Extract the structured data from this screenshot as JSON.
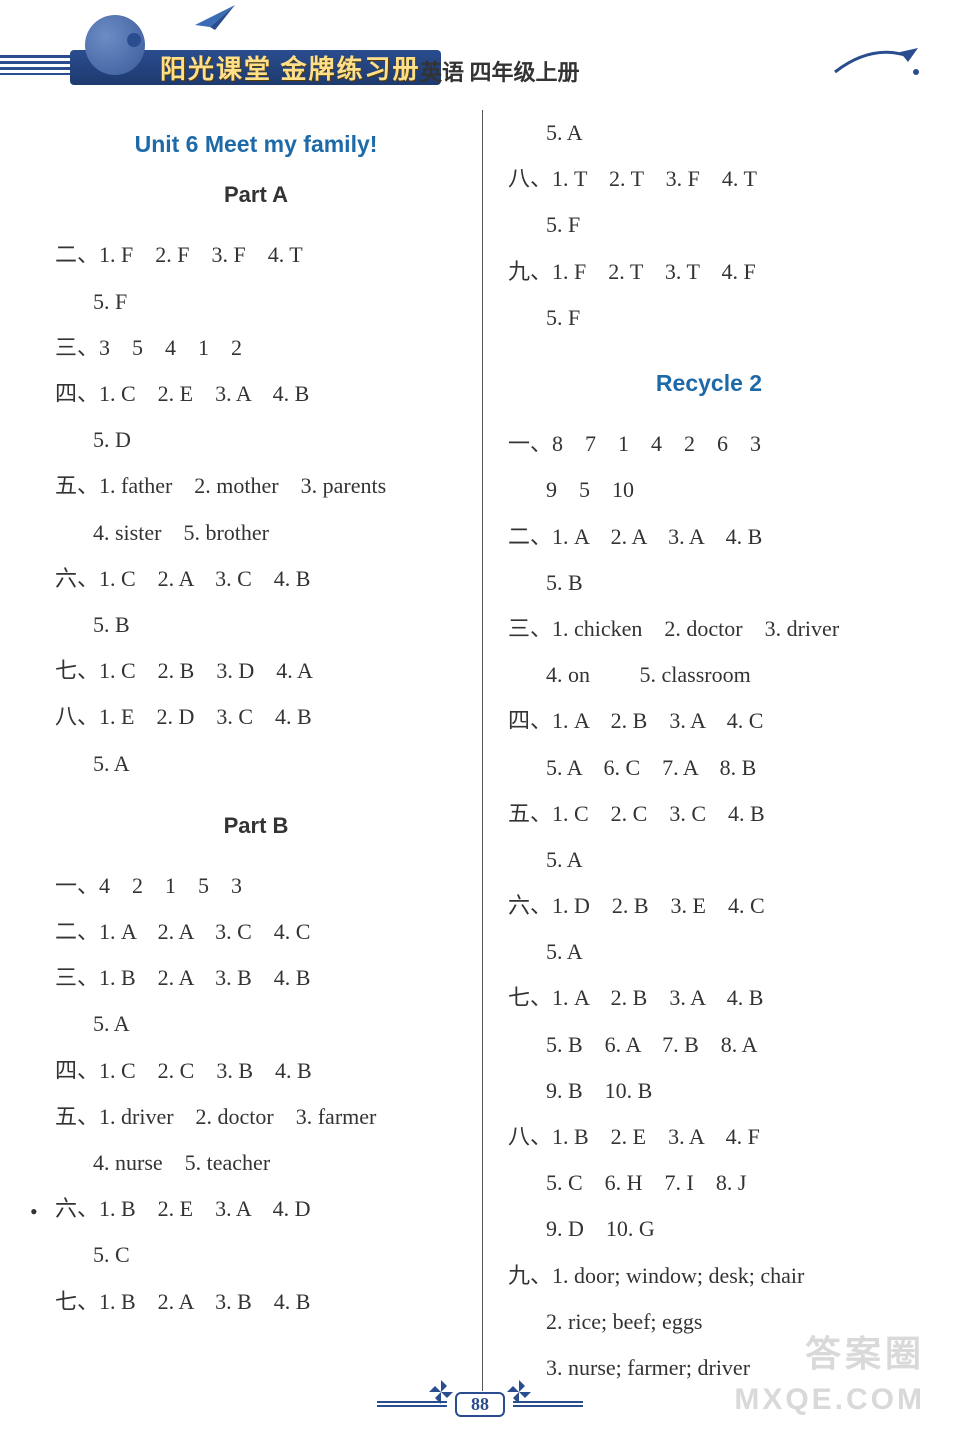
{
  "header": {
    "series_title": "阳光课堂 金牌练习册",
    "subject": "英语  四年级上册"
  },
  "left_column": {
    "unit_title": "Unit 6  Meet my family!",
    "part_a": {
      "label": "Part A",
      "lines": [
        "二、1. F    2. F    3. F    4. T",
        "  5. F",
        "三、3    5    4    1    2",
        "四、1. C    2. E    3. A    4. B",
        "  5. D",
        "五、1. father    2. mother    3. parents",
        "  4. sister    5. brother",
        "六、1. C    2. A    3. C    4. B",
        "  5. B",
        "七、1. C    2. B    3. D    4. A",
        "八、1. E    2. D    3. C    4. B",
        "  5. A"
      ]
    },
    "part_b": {
      "label": "Part B",
      "lines": [
        "一、4    2    1    5    3",
        "二、1. A    2. A    3. C    4. C",
        "三、1. B    2. A    3. B    4. B",
        "  5. A",
        "四、1. C    2. C    3. B    4. B",
        "五、1. driver    2. doctor    3. farmer",
        "  4. nurse    5. teacher",
        "六、1. B    2. E    3. A    4. D",
        "  5. C",
        "七、1. B    2. A    3. B    4. B"
      ]
    }
  },
  "right_column": {
    "top_lines": [
      "  5. A",
      "八、1. T    2. T    3. F    4. T",
      "  5. F",
      "九、1. F    2. T    3. T    4. F",
      "  5. F"
    ],
    "recycle_title": "Recycle 2",
    "recycle_lines": [
      "一、8    7    1    4    2    6    3",
      "  9    5    10",
      "二、1. A    2. A    3. A    4. B",
      "  5. B",
      "三、1. chicken    2. doctor    3. driver",
      "  4. on         5. classroom",
      "四、1. A    2. B    3. A    4. C",
      "  5. A    6. C    7. A    8. B",
      "五、1. C    2. C    3. C    4. B",
      "  5. A",
      "六、1. D    2. B    3. E    4. C",
      "  5. A",
      "七、1. A    2. B    3. A    4. B",
      "  5. B    6. A    7. B    8. A",
      "  9. B    10. B",
      "八、1. B    2. E    3. A    4. F",
      "  5. C    6. H    7. I    8. J",
      "  9. D    10. G",
      "九、1. door; window; desk; chair",
      "  2. rice; beef; eggs",
      "  3. nurse; farmer; driver"
    ]
  },
  "page_number": "88",
  "watermark": {
    "line1": "答案圈",
    "line2": "MXQE.COM"
  },
  "colors": {
    "accent_blue": "#1e6aa8",
    "header_band": "#2a4d8f",
    "header_gold": "#ffe08a",
    "text": "#333333",
    "watermark": "rgba(180,180,180,0.5)"
  }
}
